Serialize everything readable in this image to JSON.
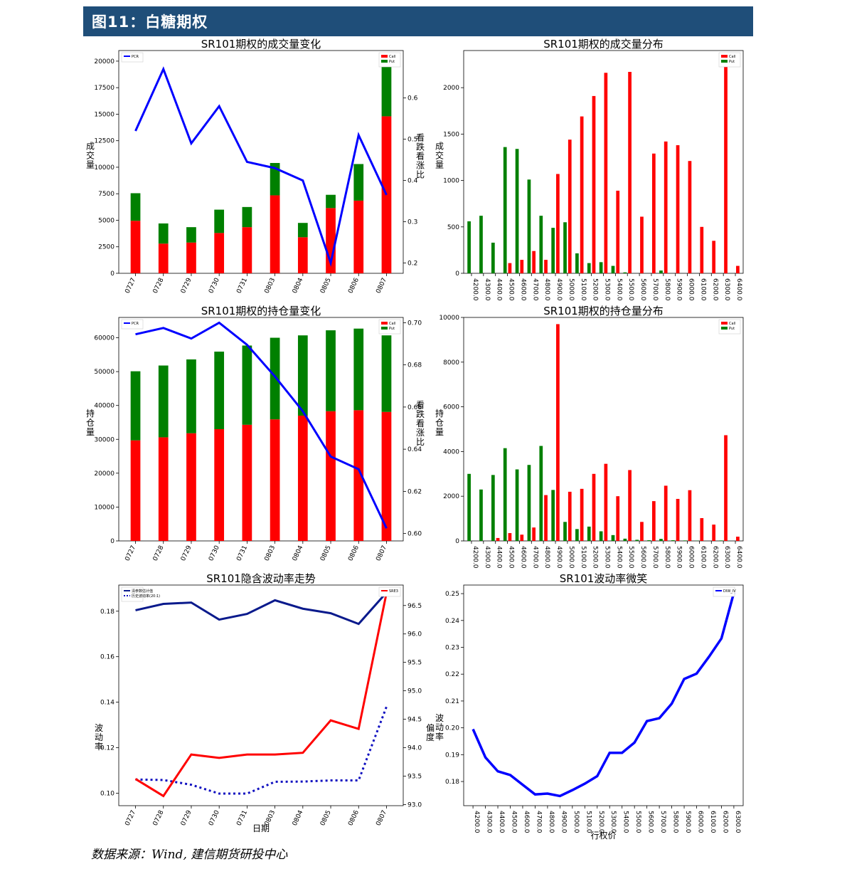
{
  "header": {
    "title": "图11：白糖期权"
  },
  "source": "数据来源：Wind, 建信期货研投中心",
  "chart_data": [
    {
      "id": "vol_change",
      "type": "bar",
      "stacked": true,
      "title": "SR101期权的成交量变化",
      "ylabel": "成交量",
      "y2label": "看跌看涨比",
      "categories": [
        "0727",
        "0728",
        "0729",
        "0730",
        "0731",
        "0803",
        "0804",
        "0805",
        "0806",
        "0807"
      ],
      "series": [
        {
          "name": "Call",
          "color": "#ff0000",
          "values": [
            4950,
            2800,
            2900,
            3800,
            4350,
            7350,
            3400,
            6150,
            6850,
            14800
          ]
        },
        {
          "name": "Put",
          "color": "#008000",
          "values": [
            2600,
            1900,
            1450,
            2200,
            1900,
            3050,
            1350,
            1250,
            3450,
            5100
          ]
        }
      ],
      "line": {
        "name": "PCR",
        "color": "#0000ff",
        "values": [
          0.52,
          0.67,
          0.49,
          0.58,
          0.445,
          0.43,
          0.4,
          0.2,
          0.51,
          0.365
        ]
      },
      "ylim": [
        0,
        21000
      ],
      "yticks": [
        0,
        2500,
        5000,
        7500,
        10000,
        12500,
        15000,
        17500,
        20000
      ],
      "y2lim": [
        0.175,
        0.715
      ],
      "y2ticks": [
        "0.2",
        "0.3",
        "0.4",
        "0.5",
        "0.6"
      ],
      "y2tickvalues": [
        0.2,
        0.3,
        0.4,
        0.5,
        0.6
      ]
    },
    {
      "id": "vol_dist",
      "type": "bar",
      "grouped": true,
      "title": "SR101期权的成交量分布",
      "ylabel": "成交量",
      "categories": [
        "4200.0",
        "4300.0",
        "4400.0",
        "4500.0",
        "4600.0",
        "4700.0",
        "4800.0",
        "4900.0",
        "5000.0",
        "5100.0",
        "5200.0",
        "5300.0",
        "5400.0",
        "5500.0",
        "5600.0",
        "5700.0",
        "5800.0",
        "5900.0",
        "6000.0",
        "6100.0",
        "6200.0",
        "6300.0",
        "6400.0"
      ],
      "series": [
        {
          "name": "Call",
          "color": "#ff0000",
          "values": [
            0,
            0,
            0,
            110,
            145,
            240,
            145,
            1070,
            1440,
            1690,
            1910,
            2160,
            890,
            2170,
            610,
            1290,
            1420,
            1380,
            1210,
            500,
            350,
            2280,
            80
          ]
        },
        {
          "name": "Put",
          "color": "#008000",
          "values": [
            560,
            620,
            330,
            1360,
            1340,
            1010,
            620,
            490,
            550,
            215,
            110,
            120,
            80,
            10,
            0,
            0,
            30,
            0,
            0,
            0,
            0,
            0,
            0
          ]
        }
      ],
      "ylim": [
        0,
        2400
      ],
      "yticks": [
        0,
        500,
        1000,
        1500,
        2000
      ]
    },
    {
      "id": "oi_change",
      "type": "bar",
      "stacked": true,
      "title": "SR101期权的持仓量变化",
      "ylabel": "持仓量",
      "y2label": "看跌看涨比",
      "categories": [
        "0727",
        "0728",
        "0729",
        "0730",
        "0731",
        "0803",
        "0804",
        "0805",
        "0806",
        "0807"
      ],
      "series": [
        {
          "name": "Call",
          "color": "#ff0000",
          "values": [
            29700,
            30600,
            31800,
            33000,
            34300,
            35900,
            37000,
            38300,
            38600,
            38100
          ]
        },
        {
          "name": "Put",
          "color": "#008000",
          "values": [
            20400,
            21200,
            21800,
            22900,
            23400,
            24100,
            23700,
            23900,
            24100,
            22600
          ]
        }
      ],
      "line": {
        "name": "PCR",
        "color": "#0000ff",
        "values": [
          0.6945,
          0.6975,
          0.6925,
          0.7,
          0.6895,
          0.6745,
          0.658,
          0.6365,
          0.6305,
          0.6025
        ]
      },
      "ylim": [
        0,
        66000
      ],
      "yticks": [
        0,
        10000,
        20000,
        30000,
        40000,
        50000,
        60000
      ],
      "y2lim": [
        0.5965,
        0.7025
      ],
      "y2ticks": [
        "0.60",
        "0.62",
        "0.64",
        "0.66",
        "0.68",
        "0.70"
      ],
      "y2tickvalues": [
        0.6,
        0.62,
        0.64,
        0.66,
        0.68,
        0.7
      ]
    },
    {
      "id": "oi_dist",
      "type": "bar",
      "grouped": true,
      "title": "SR101期权的持仓量分布",
      "ylabel": "持仓量",
      "categories": [
        "4200.0",
        "4300.0",
        "4400.0",
        "4500.0",
        "4600.0",
        "4700.0",
        "4800.0",
        "4900.0",
        "5000.0",
        "5100.0",
        "5200.0",
        "5300.0",
        "5400.0",
        "5500.0",
        "5600.0",
        "5700.0",
        "5800.0",
        "5900.0",
        "6000.0",
        "6100.0",
        "6200.0",
        "6300.0",
        "6400.0"
      ],
      "series": [
        {
          "name": "Call",
          "color": "#ff0000",
          "values": [
            0,
            0,
            130,
            350,
            280,
            600,
            2050,
            9700,
            2200,
            2330,
            3000,
            3450,
            2000,
            3170,
            850,
            1780,
            2470,
            1880,
            2270,
            1020,
            730,
            4730,
            190
          ]
        },
        {
          "name": "Put",
          "color": "#008000",
          "values": [
            3000,
            2300,
            2950,
            4150,
            3200,
            3400,
            4250,
            2280,
            850,
            530,
            640,
            430,
            260,
            100,
            50,
            30,
            90,
            30,
            20,
            10,
            0,
            20,
            0
          ]
        }
      ],
      "ylim": [
        0,
        10000
      ],
      "yticks": [
        0,
        2000,
        4000,
        6000,
        8000,
        10000
      ]
    },
    {
      "id": "iv_trend",
      "type": "line",
      "title": "SR101隐含波动率走势",
      "xlabel": "日期",
      "ylabel": "波动率",
      "categories": [
        "0727",
        "0728",
        "0729",
        "0730",
        "0731",
        "0803",
        "0804",
        "0805",
        "0806",
        "0807"
      ],
      "series": [
        {
          "name": "清参数估计值",
          "color": "#0a1a8c",
          "style": "solid",
          "axis": "left",
          "values": [
            0.1804,
            0.1832,
            0.1838,
            0.1763,
            0.1788,
            0.1848,
            0.1811,
            0.1791,
            0.1744,
            0.1882
          ]
        },
        {
          "name": "历史波动率(20:1)",
          "color": "#1010c0",
          "style": "dotted",
          "axis": "left",
          "values": [
            0.106,
            0.1058,
            0.1037,
            0.0998,
            0.0998,
            0.105,
            0.1051,
            0.1056,
            0.1056,
            0.138
          ]
        },
        {
          "name": "SRE3",
          "color": "#ff0000",
          "style": "solid",
          "axis": "right",
          "values": [
            93.45,
            93.15,
            93.88,
            93.82,
            93.88,
            93.88,
            93.91,
            94.48,
            94.33,
            96.72
          ]
        }
      ],
      "ylim": [
        0.0945,
        0.1915
      ],
      "yticks": [
        "0.10",
        "0.12",
        "0.14",
        "0.16",
        "0.18"
      ],
      "ytickvalues": [
        0.1,
        0.12,
        0.14,
        0.16,
        0.18
      ],
      "y2lim": [
        92.98,
        96.86
      ],
      "y2ticks": [
        "93.0",
        "93.5",
        "94.0",
        "94.5",
        "95.0",
        "95.5",
        "96.0",
        "96.5"
      ],
      "y2tickvalues": [
        93.0,
        93.5,
        94.0,
        94.5,
        95.0,
        95.5,
        96.0,
        96.5
      ],
      "y2label_visible": false
    },
    {
      "id": "iv_smile",
      "type": "line",
      "title": "SR101波动率微笑",
      "xlabel": "行权价",
      "ylabel": "波动率",
      "ylabel2": "偏度",
      "categories": [
        "4200.0",
        "4300.0",
        "4400.0",
        "4500.0",
        "4600.0",
        "4700.0",
        "4800.0",
        "4900.0",
        "5000.0",
        "5100.0",
        "5200.0",
        "5300.0",
        "5400.0",
        "5500.0",
        "5600.0",
        "5700.0",
        "5800.0",
        "5900.0",
        "6000.0",
        "6100.0",
        "6200.0",
        "6300.0"
      ],
      "series": [
        {
          "name": "DIW_IV",
          "color": "#0000ff",
          "values": [
            0.1995,
            0.189,
            0.1838,
            0.1824,
            0.1788,
            0.1752,
            0.1755,
            0.1746,
            0.1768,
            0.1792,
            0.182,
            0.1907,
            0.1907,
            0.1945,
            0.2025,
            0.2036,
            0.209,
            0.2182,
            0.2202,
            0.2265,
            0.2333,
            0.2503
          ]
        }
      ],
      "ylim": [
        0.171,
        0.2532
      ],
      "yticks": [
        "0.18",
        "0.19",
        "0.20",
        "0.21",
        "0.22",
        "0.23",
        "0.24",
        "0.25"
      ],
      "ytickvalues": [
        0.18,
        0.19,
        0.2,
        0.21,
        0.22,
        0.23,
        0.24,
        0.25
      ]
    }
  ]
}
